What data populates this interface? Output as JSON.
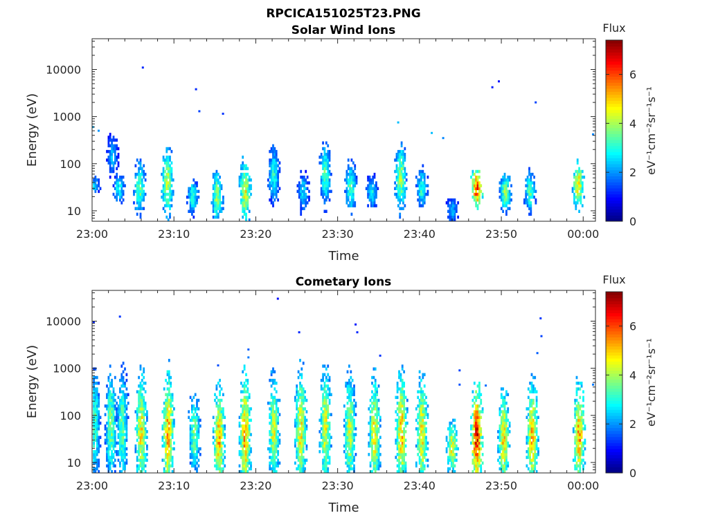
{
  "figure": {
    "filename": "RPCICA151025T23.PNG"
  },
  "colors": {
    "colormap": "jet",
    "background": "#ffffff",
    "axis": "#262626"
  },
  "chart_data": [
    {
      "type": "heatmap",
      "title": "Solar Wind Ions",
      "xlabel": "Time",
      "ylabel": "Energy (eV)",
      "x_ticks": [
        "23:00",
        "23:10",
        "23:20",
        "23:30",
        "23:40",
        "23:50",
        "00:00"
      ],
      "x_tick_minutes": [
        0,
        10,
        20,
        30,
        40,
        50,
        60
      ],
      "xlim_minutes": [
        0,
        61.5
      ],
      "y_scale": "log",
      "y_ticks": [
        "10",
        "100",
        "1000",
        "10000"
      ],
      "y_tick_values": [
        10,
        100,
        1000,
        10000
      ],
      "ylim": [
        6,
        45000
      ],
      "colorbar": {
        "label": "Flux",
        "unit": "eV⁻¹cm⁻²sr⁻¹s⁻¹",
        "range": [
          0,
          7.4
        ],
        "ticks": [
          0,
          2,
          4,
          6
        ]
      },
      "bursts": [
        {
          "t": 0.3,
          "e": 35,
          "spread": 0.15,
          "peak": 2.8
        },
        {
          "t": 2.5,
          "e": 150,
          "spread": 0.35,
          "peak": 2.5
        },
        {
          "t": 3.3,
          "e": 30,
          "spread": 0.25,
          "peak": 3.2
        },
        {
          "t": 5.8,
          "e": 30,
          "spread": 0.45,
          "peak": 3.8
        },
        {
          "t": 9.2,
          "e": 40,
          "spread": 0.6,
          "peak": 4.6
        },
        {
          "t": 12.3,
          "e": 20,
          "spread": 0.3,
          "peak": 3.4
        },
        {
          "t": 15.3,
          "e": 20,
          "spread": 0.45,
          "peak": 4.2
        },
        {
          "t": 18.7,
          "e": 25,
          "spread": 0.55,
          "peak": 4.8
        },
        {
          "t": 22.2,
          "e": 60,
          "spread": 0.5,
          "peak": 3.2
        },
        {
          "t": 25.8,
          "e": 25,
          "spread": 0.35,
          "peak": 2.8
        },
        {
          "t": 28.5,
          "e": 60,
          "spread": 0.55,
          "peak": 3.6
        },
        {
          "t": 31.6,
          "e": 30,
          "spread": 0.45,
          "peak": 3.6
        },
        {
          "t": 34.2,
          "e": 25,
          "spread": 0.3,
          "peak": 3.0
        },
        {
          "t": 37.7,
          "e": 50,
          "spread": 0.6,
          "peak": 4.2
        },
        {
          "t": 40.3,
          "e": 30,
          "spread": 0.35,
          "peak": 3.4
        },
        {
          "t": 44.0,
          "e": 10,
          "spread": 0.25,
          "peak": 2.5
        },
        {
          "t": 47.0,
          "e": 30,
          "spread": 0.35,
          "peak": 6.5
        },
        {
          "t": 50.5,
          "e": 25,
          "spread": 0.35,
          "peak": 4.0
        },
        {
          "t": 53.5,
          "e": 25,
          "spread": 0.35,
          "peak": 3.6
        },
        {
          "t": 59.4,
          "e": 35,
          "spread": 0.4,
          "peak": 5.2
        }
      ],
      "sparse_points": [
        {
          "t": 0.1,
          "e": 600,
          "v": 2.2
        },
        {
          "t": 0.8,
          "e": 500,
          "v": 2.0
        },
        {
          "t": 6.2,
          "e": 11000,
          "v": 1.2
        },
        {
          "t": 12.7,
          "e": 3800,
          "v": 1.2
        },
        {
          "t": 13.1,
          "e": 1300,
          "v": 1.4
        },
        {
          "t": 16.0,
          "e": 1150,
          "v": 1.3
        },
        {
          "t": 37.4,
          "e": 750,
          "v": 2.3
        },
        {
          "t": 41.5,
          "e": 450,
          "v": 2.3
        },
        {
          "t": 42.9,
          "e": 350,
          "v": 1.9
        },
        {
          "t": 48.9,
          "e": 4200,
          "v": 1.1
        },
        {
          "t": 49.7,
          "e": 5600,
          "v": 1.0
        },
        {
          "t": 54.2,
          "e": 2000,
          "v": 1.4
        },
        {
          "t": 61.2,
          "e": 420,
          "v": 1.9
        }
      ]
    },
    {
      "type": "heatmap",
      "title": "Cometary Ions",
      "xlabel": "Time",
      "ylabel": "Energy (eV)",
      "x_ticks": [
        "23:00",
        "23:10",
        "23:20",
        "23:30",
        "23:40",
        "23:50",
        "00:00"
      ],
      "x_tick_minutes": [
        0,
        10,
        20,
        30,
        40,
        50,
        60
      ],
      "xlim_minutes": [
        0,
        61.5
      ],
      "y_scale": "log",
      "y_ticks": [
        "10",
        "100",
        "1000",
        "10000"
      ],
      "y_tick_values": [
        10,
        100,
        1000,
        10000
      ],
      "ylim": [
        6,
        45000
      ],
      "colorbar": {
        "label": "Flux",
        "unit": "eV⁻¹cm⁻²sr⁻¹s⁻¹",
        "range": [
          0,
          7.4
        ],
        "ticks": [
          0,
          2,
          4,
          6
        ]
      },
      "bursts": [
        {
          "t": 0.3,
          "e": 60,
          "spread": 1.0,
          "peak": 3.6
        },
        {
          "t": 2.3,
          "e": 60,
          "spread": 0.95,
          "peak": 4.0
        },
        {
          "t": 3.7,
          "e": 60,
          "spread": 1.0,
          "peak": 3.8
        },
        {
          "t": 6.0,
          "e": 45,
          "spread": 1.0,
          "peak": 5.0
        },
        {
          "t": 9.3,
          "e": 45,
          "spread": 1.05,
          "peak": 5.6
        },
        {
          "t": 12.5,
          "e": 40,
          "spread": 0.7,
          "peak": 4.0
        },
        {
          "t": 15.5,
          "e": 30,
          "spread": 0.9,
          "peak": 5.4
        },
        {
          "t": 18.7,
          "e": 35,
          "spread": 1.05,
          "peak": 5.6
        },
        {
          "t": 22.2,
          "e": 45,
          "spread": 1.0,
          "peak": 4.6
        },
        {
          "t": 25.5,
          "e": 50,
          "spread": 1.05,
          "peak": 5.0
        },
        {
          "t": 28.5,
          "e": 55,
          "spread": 1.0,
          "peak": 4.8
        },
        {
          "t": 31.5,
          "e": 45,
          "spread": 1.0,
          "peak": 4.6
        },
        {
          "t": 34.5,
          "e": 40,
          "spread": 1.0,
          "peak": 5.0
        },
        {
          "t": 37.8,
          "e": 45,
          "spread": 1.05,
          "peak": 5.4
        },
        {
          "t": 40.3,
          "e": 40,
          "spread": 1.0,
          "peak": 5.0
        },
        {
          "t": 44.0,
          "e": 20,
          "spread": 0.5,
          "peak": 4.8
        },
        {
          "t": 47.0,
          "e": 35,
          "spread": 0.85,
          "peak": 6.8
        },
        {
          "t": 50.3,
          "e": 30,
          "spread": 0.85,
          "peak": 5.2
        },
        {
          "t": 53.8,
          "e": 35,
          "spread": 0.95,
          "peak": 5.4
        },
        {
          "t": 59.5,
          "e": 40,
          "spread": 0.9,
          "peak": 5.6
        }
      ],
      "sparse_points": [
        {
          "t": 0.2,
          "e": 9500,
          "v": 1.2
        },
        {
          "t": 3.4,
          "e": 12500,
          "v": 1.3
        },
        {
          "t": 15.4,
          "e": 1150,
          "v": 1.5
        },
        {
          "t": 19.1,
          "e": 2500,
          "v": 1.6
        },
        {
          "t": 19.1,
          "e": 1700,
          "v": 1.8
        },
        {
          "t": 22.7,
          "e": 30000,
          "v": 1.0
        },
        {
          "t": 25.3,
          "e": 5800,
          "v": 1.2
        },
        {
          "t": 32.2,
          "e": 8500,
          "v": 1.1
        },
        {
          "t": 32.4,
          "e": 5800,
          "v": 1.2
        },
        {
          "t": 35.2,
          "e": 1850,
          "v": 1.3
        },
        {
          "t": 44.9,
          "e": 900,
          "v": 1.4
        },
        {
          "t": 44.9,
          "e": 450,
          "v": 1.5
        },
        {
          "t": 48.1,
          "e": 430,
          "v": 1.7
        },
        {
          "t": 54.4,
          "e": 2100,
          "v": 1.6
        },
        {
          "t": 54.8,
          "e": 11500,
          "v": 1.3
        },
        {
          "t": 54.9,
          "e": 4800,
          "v": 1.4
        },
        {
          "t": 61.2,
          "e": 450,
          "v": 1.8
        }
      ]
    }
  ]
}
